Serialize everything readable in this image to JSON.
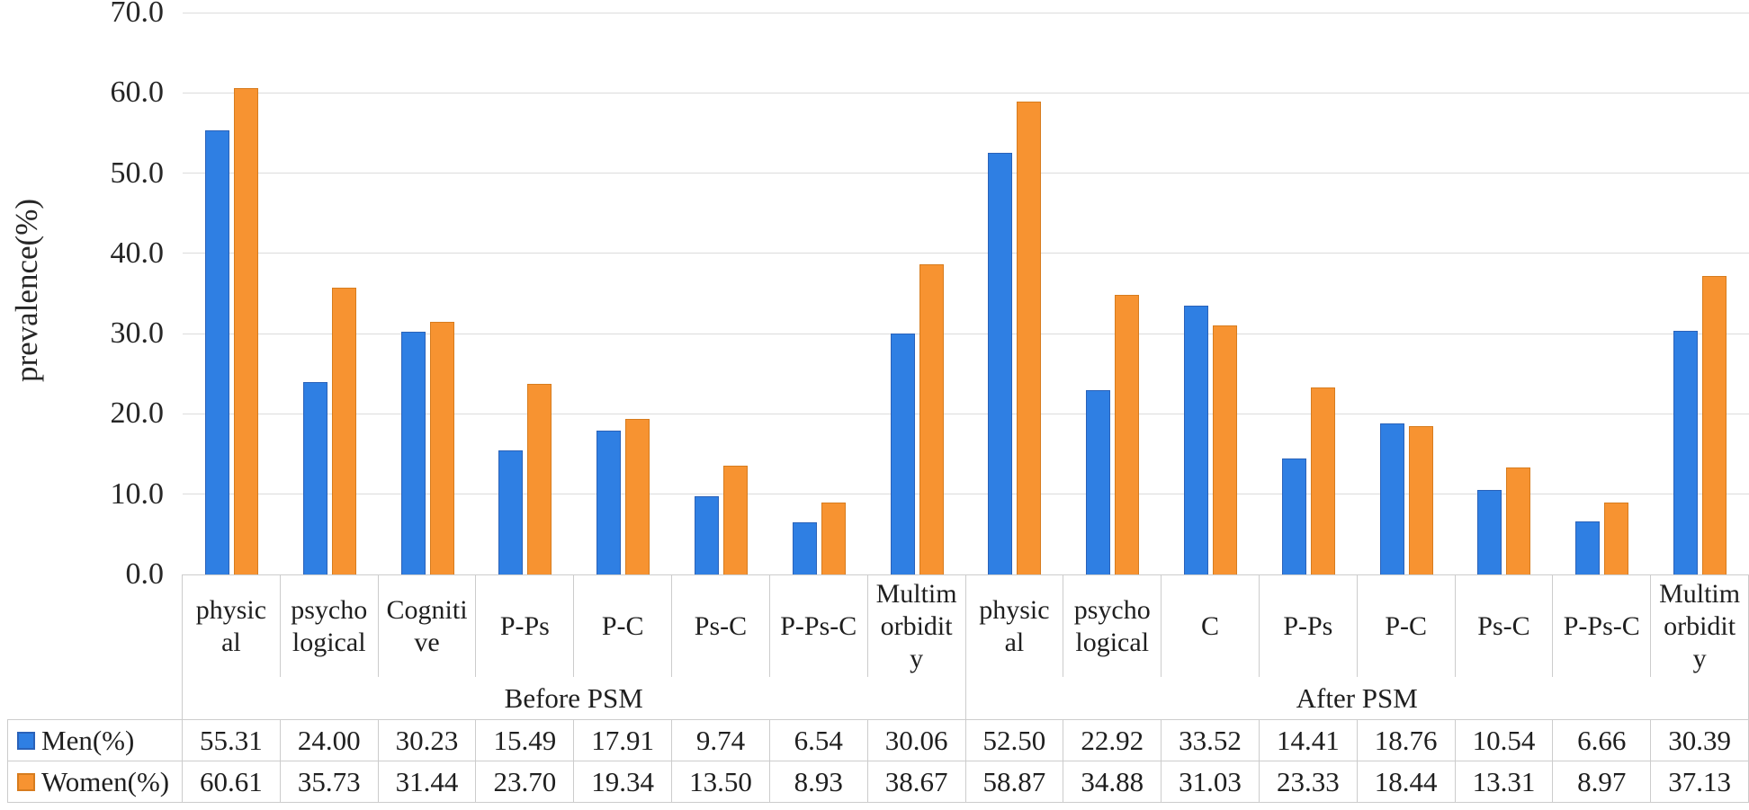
{
  "chart_data": {
    "type": "bar",
    "title": "",
    "xlabel": "",
    "ylabel": "prevalence(%)",
    "ylim": [
      0,
      70
    ],
    "ytick_step": 10,
    "ytick_decimals": 1,
    "value_decimals": 2,
    "grid": true,
    "legend_position": "table-row-headers",
    "categories": [
      "physical",
      "psychological",
      "Cognitive",
      "P-Ps",
      "P-C",
      "Ps-C",
      "P-Ps-C",
      "Multimorbidity",
      "physical",
      "psychological",
      "C",
      "P-Ps",
      "P-C",
      "Ps-C",
      "P-Ps-C",
      "Multimorbidity"
    ],
    "category_display_lines": [
      [
        "physic",
        "al"
      ],
      [
        "psycho",
        "logical"
      ],
      [
        "Cogniti",
        "ve"
      ],
      [
        "P-Ps"
      ],
      [
        "P-C"
      ],
      [
        "Ps-C"
      ],
      [
        "P-Ps-C"
      ],
      [
        "Multim",
        "orbidit",
        "y"
      ],
      [
        "physic",
        "al"
      ],
      [
        "psycho",
        "logical"
      ],
      [
        "C"
      ],
      [
        "P-Ps"
      ],
      [
        "P-C"
      ],
      [
        "Ps-C"
      ],
      [
        "P-Ps-C"
      ],
      [
        "Multim",
        "orbidit",
        "y"
      ]
    ],
    "group_spans": [
      {
        "label": "Before PSM",
        "start": 0,
        "count": 8
      },
      {
        "label": "After PSM",
        "start": 8,
        "count": 8
      }
    ],
    "series": [
      {
        "name": "Men(%)",
        "color": "#2f7fe3",
        "border_color": "#2a62b9",
        "values": [
          55.31,
          24.0,
          30.23,
          15.49,
          17.91,
          9.74,
          6.54,
          30.06,
          52.5,
          22.92,
          33.52,
          14.41,
          18.76,
          10.54,
          6.66,
          30.39
        ]
      },
      {
        "name": "Women(%)",
        "color": "#f79331",
        "border_color": "#d77c1e",
        "values": [
          60.61,
          35.73,
          31.44,
          23.7,
          19.34,
          13.5,
          8.93,
          38.67,
          58.87,
          34.88,
          31.03,
          23.33,
          18.44,
          13.31,
          8.97,
          37.13
        ]
      }
    ],
    "colors": {
      "gridline": "#dcdcdc",
      "table_border": "#cccccc",
      "text": "#1f1f1f",
      "background": "#ffffff"
    }
  }
}
